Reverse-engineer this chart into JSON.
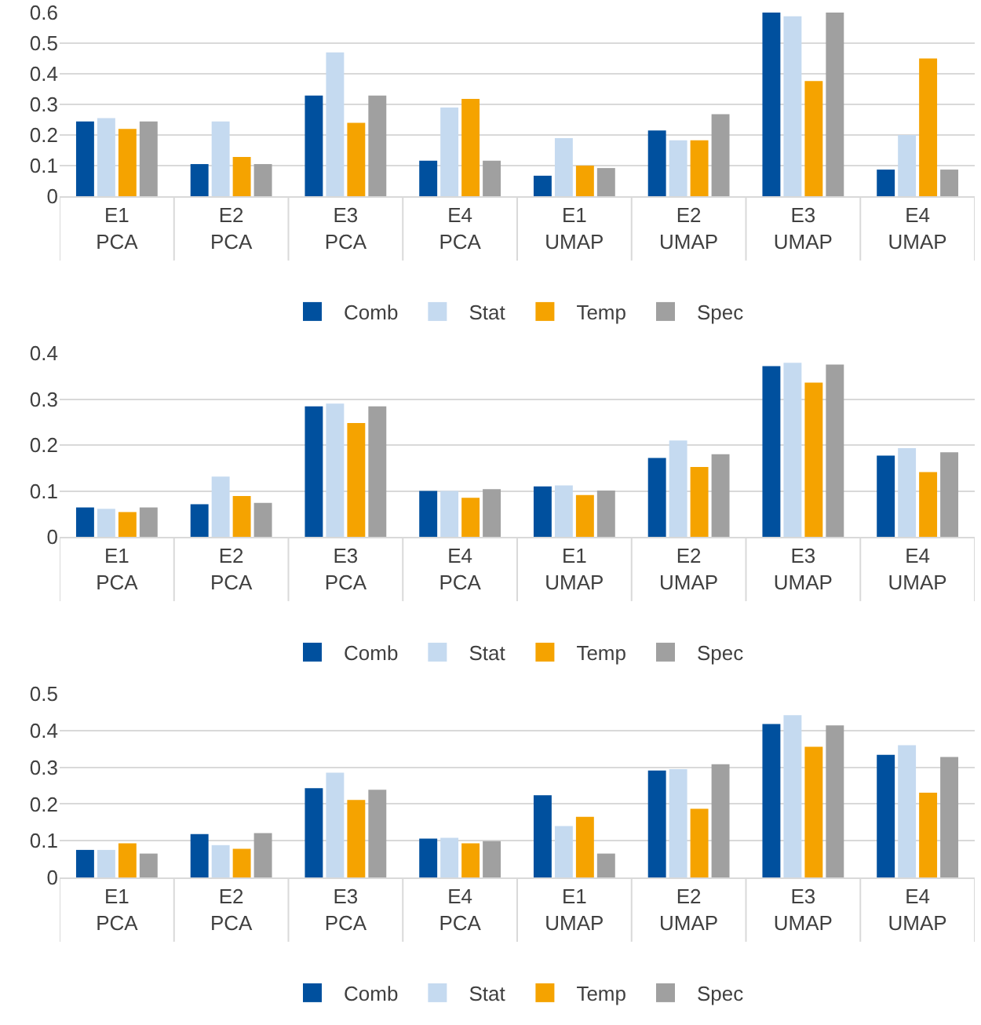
{
  "chart_data": [
    {
      "type": "bar",
      "categories": [
        "E1\nPCA",
        "E2\nPCA",
        "E3\nPCA",
        "E4\nPCA",
        "E1\nUMAP",
        "E2\nUMAP",
        "E3\nUMAP",
        "E4\nUMAP"
      ],
      "ylim": [
        0,
        0.6
      ],
      "yticks": [
        0,
        0.1,
        0.2,
        0.3,
        0.4,
        0.5,
        0.6
      ],
      "grid": "y",
      "legend": "bottom",
      "series": [
        {
          "name": "Comb",
          "color": "#00509e",
          "values": [
            0.244,
            0.105,
            0.329,
            0.116,
            0.067,
            0.215,
            0.6,
            0.087
          ]
        },
        {
          "name": "Stat",
          "color": "#c5daf0",
          "values": [
            0.255,
            0.244,
            0.47,
            0.29,
            0.19,
            0.183,
            0.588,
            0.2
          ]
        },
        {
          "name": "Temp",
          "color": "#f5a300",
          "values": [
            0.22,
            0.128,
            0.24,
            0.318,
            0.1,
            0.183,
            0.376,
            0.45
          ]
        },
        {
          "name": "Spec",
          "color": "#a0a0a0",
          "values": [
            0.244,
            0.105,
            0.329,
            0.116,
            0.092,
            0.268,
            0.6,
            0.087
          ]
        }
      ]
    },
    {
      "type": "bar",
      "categories": [
        "E1\nPCA",
        "E2\nPCA",
        "E3\nPCA",
        "E4\nPCA",
        "E1\nUMAP",
        "E2\nUMAP",
        "E3\nUMAP",
        "E4\nUMAP"
      ],
      "ylim": [
        0,
        0.4
      ],
      "yticks": [
        0,
        0.1,
        0.2,
        0.3,
        0.4
      ],
      "grid": "y",
      "legend": "bottom",
      "series": [
        {
          "name": "Comb",
          "color": "#00509e",
          "values": [
            0.064,
            0.071,
            0.284,
            0.1,
            0.11,
            0.172,
            0.372,
            0.177
          ]
        },
        {
          "name": "Stat",
          "color": "#c5daf0",
          "values": [
            0.061,
            0.131,
            0.29,
            0.1,
            0.112,
            0.21,
            0.379,
            0.193
          ]
        },
        {
          "name": "Temp",
          "color": "#f5a300",
          "values": [
            0.054,
            0.089,
            0.248,
            0.085,
            0.091,
            0.152,
            0.336,
            0.141
          ]
        },
        {
          "name": "Spec",
          "color": "#a0a0a0",
          "values": [
            0.064,
            0.074,
            0.284,
            0.104,
            0.101,
            0.18,
            0.375,
            0.184
          ]
        }
      ]
    },
    {
      "type": "bar",
      "categories": [
        "E1\nPCA",
        "E2\nPCA",
        "E3\nPCA",
        "E4\nPCA",
        "E1\nUMAP",
        "E2\nUMAP",
        "E3\nUMAP",
        "E4\nUMAP"
      ],
      "ylim": [
        0,
        0.5
      ],
      "yticks": [
        0,
        0.1,
        0.2,
        0.3,
        0.4,
        0.5
      ],
      "grid": "y",
      "legend": "bottom",
      "series": [
        {
          "name": "Comb",
          "color": "#00509e",
          "values": [
            0.075,
            0.118,
            0.243,
            0.106,
            0.224,
            0.291,
            0.418,
            0.334
          ]
        },
        {
          "name": "Stat",
          "color": "#c5daf0",
          "values": [
            0.075,
            0.088,
            0.285,
            0.108,
            0.14,
            0.295,
            0.442,
            0.36
          ]
        },
        {
          "name": "Temp",
          "color": "#f5a300",
          "values": [
            0.093,
            0.078,
            0.211,
            0.093,
            0.165,
            0.187,
            0.356,
            0.231
          ]
        },
        {
          "name": "Spec",
          "color": "#a0a0a0",
          "values": [
            0.065,
            0.121,
            0.239,
            0.099,
            0.065,
            0.308,
            0.414,
            0.328
          ]
        }
      ]
    }
  ]
}
